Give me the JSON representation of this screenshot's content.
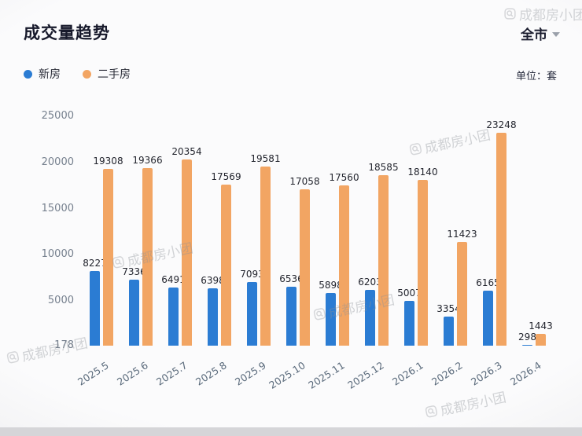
{
  "header": {
    "title": "成交量趋势",
    "scope_selector": "全市",
    "unit_label": "单位：套"
  },
  "legend": {
    "items": [
      {
        "label": "新房",
        "color": "#2b7cd3"
      },
      {
        "label": "二手房",
        "color": "#f2a563"
      }
    ]
  },
  "watermark": {
    "text": "成都房小团"
  },
  "chart_data": {
    "type": "bar",
    "title": "成交量趋势",
    "categories": [
      "2025.5",
      "2025.6",
      "2025.7",
      "2025.8",
      "2025.9",
      "2025.10",
      "2025.11",
      "2025.12",
      "2026.1",
      "2026.2",
      "2026.3",
      "2026.4"
    ],
    "series": [
      {
        "name": "新房",
        "color": "#2b7cd3",
        "values": [
          8227,
          7336,
          6491,
          6398,
          7093,
          6536,
          5898,
          6203,
          5007,
          3354,
          6165,
          298
        ]
      },
      {
        "name": "二手房",
        "color": "#f2a563",
        "values": [
          19308,
          19366,
          20354,
          17569,
          19581,
          17058,
          17560,
          18585,
          18140,
          11423,
          23248,
          1443
        ]
      }
    ],
    "ylim": [
      178,
      25000
    ],
    "yticks": [
      25000,
      20000,
      15000,
      10000,
      5000,
      178
    ],
    "grid": false,
    "legend_position": "top-left",
    "unit": "套"
  }
}
